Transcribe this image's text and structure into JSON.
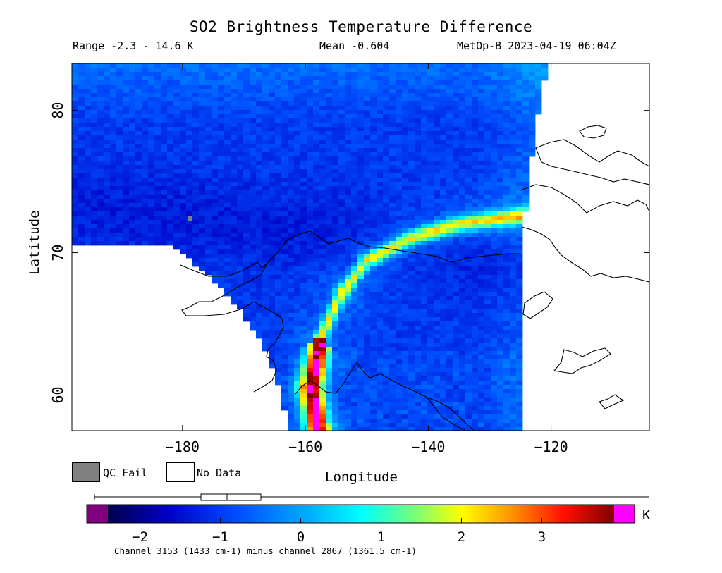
{
  "chart_data": {
    "type": "heatmap",
    "title": "SO2 Brightness Temperature Difference",
    "range_label": "Range -2.3 - 14.6 K",
    "mean_label": "Mean -0.604",
    "satellite_label": "MetOp-B 2023-04-19 06:04Z",
    "xlabel": "Longitude",
    "ylabel": "Latitude",
    "xlim": [
      -198,
      -104
    ],
    "ylim": [
      57.5,
      83.3
    ],
    "x_ticks": [
      -180,
      -160,
      -140,
      -120
    ],
    "x_tick_labels": [
      "−180",
      "−160",
      "−140",
      "−120"
    ],
    "y_ticks": [
      60,
      70,
      80
    ],
    "y_tick_labels": [
      "60",
      "70",
      "80"
    ],
    "colorbar": {
      "unit": "K",
      "min": -2.4,
      "max": 3.9,
      "ticks": [
        -2,
        -1,
        0,
        1,
        2,
        3
      ],
      "tick_labels": [
        "−2",
        "−1",
        "0",
        "1",
        "2",
        "3"
      ],
      "under_color": "#800080",
      "over_color": "#ff00ff"
    },
    "legend": [
      {
        "name": "QC Fail",
        "color": "#808080"
      },
      {
        "name": "No Data",
        "color": "#ffffff"
      }
    ],
    "caption": "Channel 3153 (1433 cm-1) minus channel 2867 (1361.5 cm-1)",
    "features": [
      {
        "name": "SO2 plume band",
        "values_K": "1.5 to >3.9",
        "note": "curving band from ~(-158,57.5) through (-150,69.5) to (-124,72.6)"
      }
    ],
    "background_value_K": -1.0
  }
}
